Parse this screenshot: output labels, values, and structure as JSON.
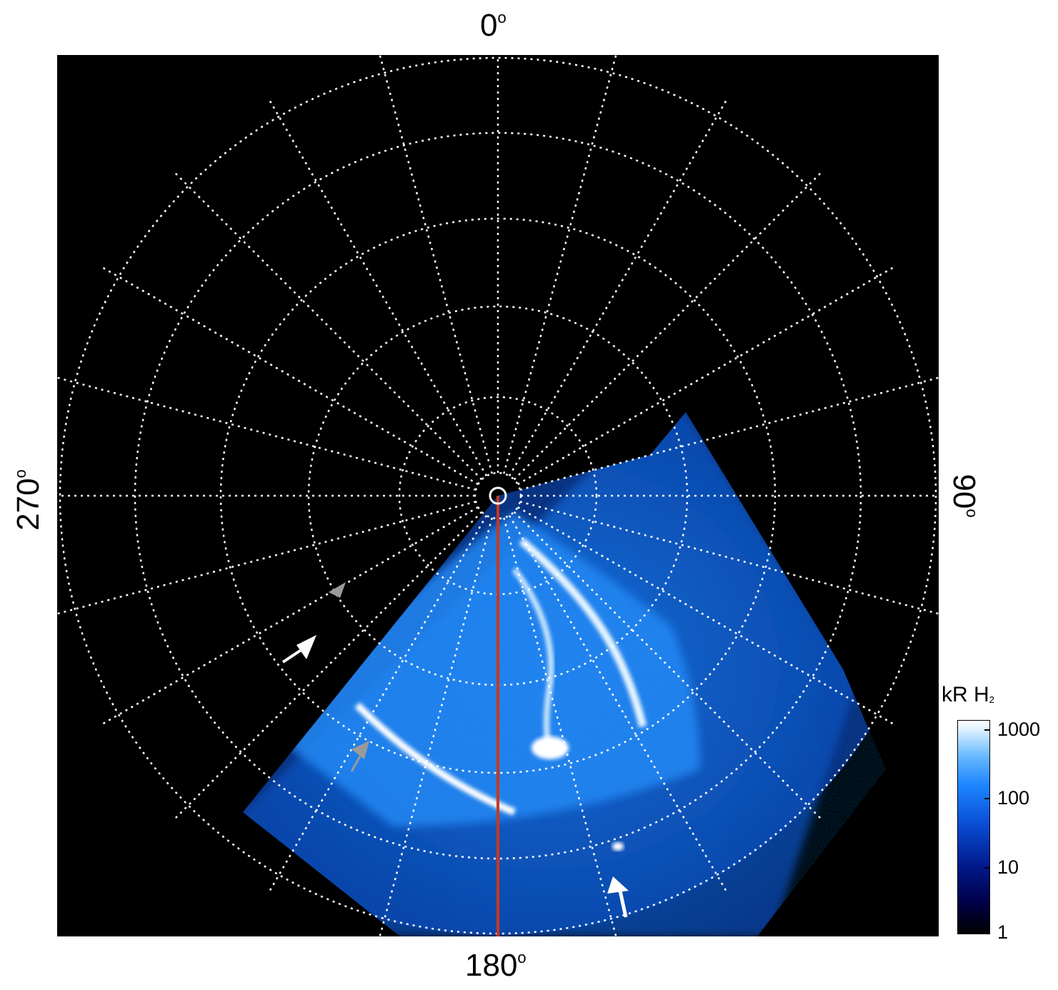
{
  "axis_labels": {
    "top": "0",
    "right": "90",
    "bottom": "180",
    "left": "270",
    "degree_symbol": "o"
  },
  "colorbar": {
    "title_main": "kR H",
    "title_sub": "2",
    "ticks": [
      "1000",
      "100",
      "10",
      "1"
    ],
    "scale": "log"
  },
  "colors": {
    "background": "#000000",
    "grid": "#ffffff",
    "meridian_line": "#c8381e",
    "aurora": "#1e86ff",
    "arrow_white": "#ffffff",
    "arrow_grey": "#9a9a9a"
  }
}
